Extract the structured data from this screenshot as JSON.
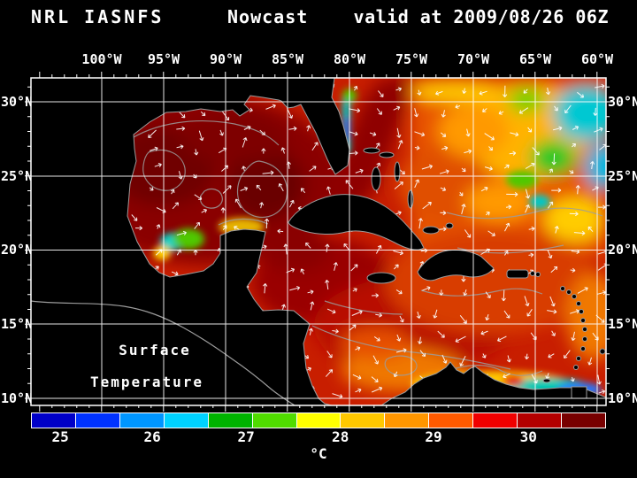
{
  "header": {
    "left": "NRL IASNFS",
    "center": "Nowcast",
    "right": "valid at 2009/08/26 06Z"
  },
  "map": {
    "lon_ticks": [
      "100°W",
      "95°W",
      "90°W",
      "85°W",
      "80°W",
      "75°W",
      "70°W",
      "65°W",
      "60°W"
    ],
    "lat_ticks_left": [
      "30°N",
      "25°N",
      "20°N",
      "15°N",
      "10°N"
    ],
    "lat_ticks_right": [
      "30°N",
      "25°N",
      "20°N",
      "15°N",
      "10°N"
    ],
    "overlay_label": {
      "line1": "Surface",
      "line2": "Temperature"
    }
  },
  "colorbar": {
    "unit": "°C",
    "ticks": [
      "25",
      "26",
      "27",
      "28",
      "29",
      "30"
    ],
    "tick_pos_pct": [
      5.1,
      21.1,
      37.4,
      53.8,
      70.0,
      86.5
    ],
    "segments": [
      "#0000c8",
      "#0032ff",
      "#0096ff",
      "#00d2ff",
      "#00b400",
      "#50dc00",
      "#ffff00",
      "#ffc800",
      "#ff9600",
      "#ff5a00",
      "#f00000",
      "#b40000",
      "#780000"
    ]
  },
  "chart_data": {
    "type": "heatmap",
    "title": "NRL IASNFS Nowcast valid at 2009/08/26 06Z",
    "variable": "Surface Temperature",
    "units": "°C",
    "colorbar_ticks": [
      25,
      26,
      27,
      28,
      29,
      30
    ],
    "colorbar_range": [
      24.5,
      31
    ],
    "lon_axis_deg_w": [
      100,
      95,
      90,
      85,
      80,
      75,
      70,
      65,
      60
    ],
    "lat_axis_deg_n": [
      30,
      25,
      20,
      15,
      10
    ],
    "regions_approx_temp_c": {
      "gulf_of_mexico": "30.5-31",
      "northwest_caribbean": "30-30.5",
      "central_caribbean": "29.5-30",
      "eastern_caribbean_atlantic": "28.5-29.5",
      "subtropical_atlantic_northeast_eddies": "25.5-27.5",
      "venezuela_coastal_upwelling": "25-27",
      "bay_of_campeche_coastal_patch": "26-27"
    },
    "overlays": [
      "surface current vectors (white arrows)",
      "gray ocean contour lines",
      "gray coastlines",
      "5-degree white lat/lon grid"
    ]
  }
}
